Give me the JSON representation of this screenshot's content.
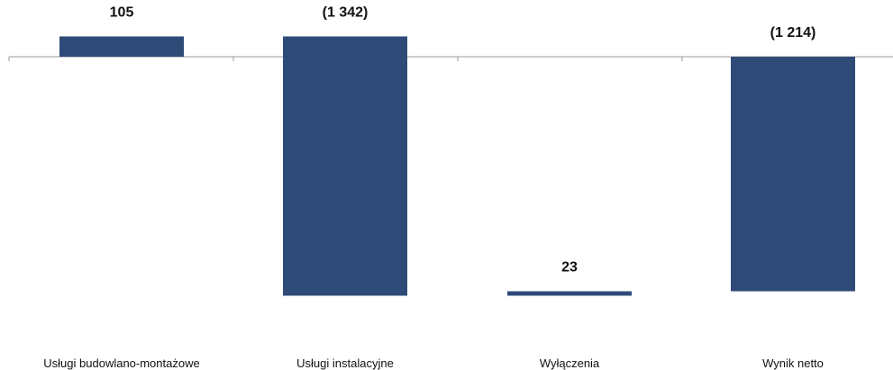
{
  "chart_data": {
    "type": "bar",
    "categories": [
      "Usługi budowlano-montażowe",
      "Usługi instalacyjne",
      "Wyłączenia",
      "Wynik netto"
    ],
    "values": [
      105,
      -1342,
      23,
      -1214
    ],
    "value_labels": [
      "105",
      "(1 342)",
      "23",
      "(1 214)"
    ],
    "title": "",
    "xlabel": "",
    "ylabel": "",
    "ylim": [
      -1400,
      150
    ],
    "grid": false,
    "legend": "none",
    "bar_color": "#2e4b78",
    "axis_color": "#9a9a9a"
  }
}
